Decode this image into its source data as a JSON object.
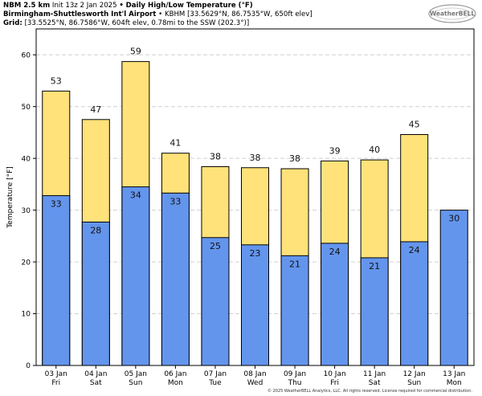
{
  "header": {
    "line1_bold": "NBM 2.5 km",
    "line1_init": "Init 13z 2 Jan 2025",
    "line1_sep": "•",
    "line1_title": "Daily High/Low Temperature (°F)",
    "line2_bold": "Birmingham-Shuttlesworth Int'l Airport",
    "line2_rest": "• KBHM [33.5629°N, 86.7535°W, 650ft elev]",
    "line3_bold": "Grid:",
    "line3_rest": "[33.5525°N, 86.7586°W, 604ft elev, 0.78mi to the SSW (202.3°)]"
  },
  "logo_text": "WeatherBELL",
  "footer": "© 2025 WeatherBELL Analytics, LLC. All rights reserved. License required for commercial distribution.",
  "colors": {
    "high": "#ffe27a",
    "low": "#6495ed",
    "grid": "#d0d0d0",
    "border": "#000000"
  },
  "chart_data": {
    "type": "bar",
    "ylabel": "Temperature [°F]",
    "ylim": [
      0,
      65
    ],
    "yticks": [
      0,
      10,
      20,
      30,
      40,
      50,
      60
    ],
    "grid": true,
    "categories": [
      {
        "date": "03 Jan",
        "day": "Fri"
      },
      {
        "date": "04 Jan",
        "day": "Sat"
      },
      {
        "date": "05 Jan",
        "day": "Sun"
      },
      {
        "date": "06 Jan",
        "day": "Mon"
      },
      {
        "date": "07 Jan",
        "day": "Tue"
      },
      {
        "date": "08 Jan",
        "day": "Wed"
      },
      {
        "date": "09 Jan",
        "day": "Thu"
      },
      {
        "date": "10 Jan",
        "day": "Fri"
      },
      {
        "date": "11 Jan",
        "day": "Sat"
      },
      {
        "date": "12 Jan",
        "day": "Sun"
      },
      {
        "date": "13 Jan",
        "day": "Mon"
      }
    ],
    "series": [
      {
        "values": [
          53,
          47.5,
          58.7,
          41,
          38.4,
          38.2,
          38,
          39.5,
          39.7,
          44.6,
          null
        ],
        "labels": [
          "53",
          "47",
          "59",
          "41",
          "38",
          "38",
          "38",
          "39",
          "40",
          "45",
          null
        ]
      },
      {
        "values": [
          32.8,
          27.7,
          34.5,
          33.3,
          24.7,
          23.3,
          21.2,
          23.6,
          20.8,
          23.9,
          30
        ],
        "labels": [
          "33",
          "28",
          "34",
          "33",
          "25",
          "23",
          "21",
          "24",
          "21",
          "24",
          "30"
        ]
      }
    ]
  }
}
